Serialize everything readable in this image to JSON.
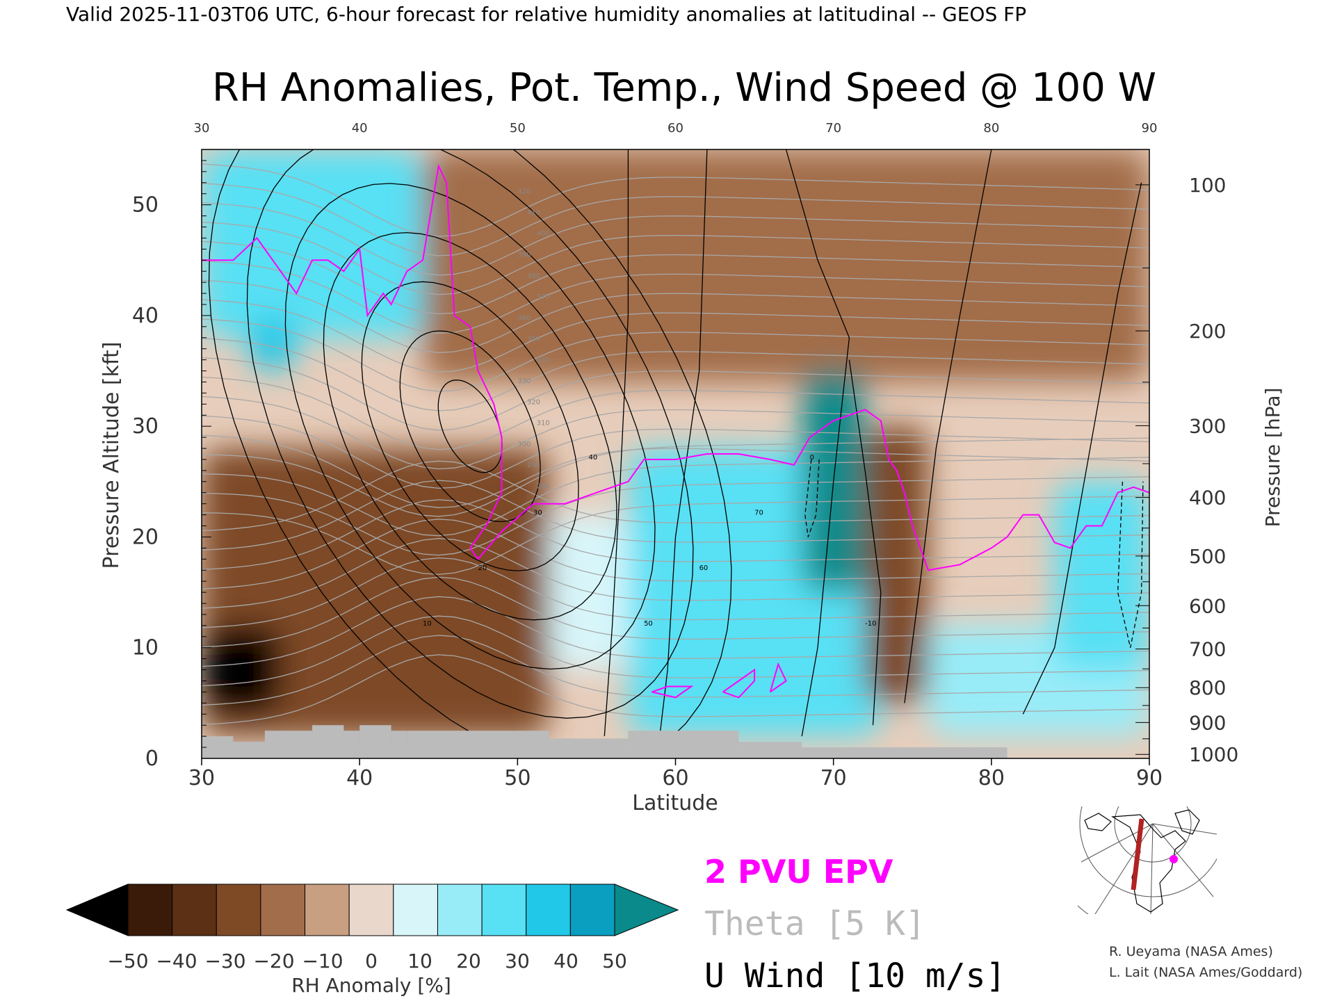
{
  "header": "Valid 2025-11-03T06 UTC, 6-hour forecast for relative humidity anomalies at latitudinal -- GEOS FP",
  "chart_data": {
    "type": "heatmap",
    "title": "RH Anomalies, Pot. Temp., Wind Speed @ 100 W",
    "xlabel": "Latitude",
    "ylabel_left": "Pressure Altitude [kft]",
    "ylabel_right": "Pressure [hPa]",
    "xlim": [
      30,
      90
    ],
    "ylim_kft": [
      0,
      55
    ],
    "x_ticks": [
      "30",
      "40",
      "50",
      "60",
      "70",
      "80",
      "90"
    ],
    "y_ticks_kft": [
      "0",
      "10",
      "20",
      "30",
      "40",
      "50"
    ],
    "pressure_ticks": [
      {
        "label": "100",
        "hpa": 100
      },
      {
        "label": "200",
        "hpa": 200
      },
      {
        "label": "300",
        "hpa": 300
      },
      {
        "label": "400",
        "hpa": 400
      },
      {
        "label": "500",
        "hpa": 500
      },
      {
        "label": "600",
        "hpa": 600
      },
      {
        "label": "700",
        "hpa": 700
      },
      {
        "label": "800",
        "hpa": 800
      },
      {
        "label": "900",
        "hpa": 900
      },
      {
        "label": "1000",
        "hpa": 1000
      }
    ],
    "rh_regions": [
      {
        "lat": [
          30,
          44
        ],
        "kft": [
          38,
          55
        ],
        "anomaly": 30
      },
      {
        "lat": [
          33,
          36
        ],
        "kft": [
          35,
          40
        ],
        "anomaly": 45
      },
      {
        "lat": [
          30,
          52
        ],
        "kft": [
          2,
          28
        ],
        "anomaly": -30
      },
      {
        "lat": [
          30,
          35
        ],
        "kft": [
          4,
          12
        ],
        "anomaly": -50
      },
      {
        "lat": [
          44,
          90
        ],
        "kft": [
          34,
          55
        ],
        "anomaly": -15
      },
      {
        "lat": [
          52,
          57
        ],
        "kft": [
          8,
          22
        ],
        "anomaly": 15
      },
      {
        "lat": [
          57,
          73
        ],
        "kft": [
          2,
          28
        ],
        "anomaly": 30
      },
      {
        "lat": [
          68,
          72
        ],
        "kft": [
          15,
          35
        ],
        "anomaly": 50
      },
      {
        "lat": [
          72,
          76
        ],
        "kft": [
          5,
          30
        ],
        "anomaly": -25
      },
      {
        "lat": [
          76,
          90
        ],
        "kft": [
          2,
          12
        ],
        "anomaly": 20
      },
      {
        "lat": [
          84,
          90
        ],
        "kft": [
          8,
          25
        ],
        "anomaly": 35
      }
    ],
    "theta_labels": [
      "420",
      "410",
      "400",
      "390",
      "380",
      "370",
      "360",
      "350",
      "340",
      "330",
      "320",
      "310",
      "300",
      "290",
      "280"
    ],
    "wind_labels": [
      "10",
      "20",
      "30",
      "40",
      "50",
      "60",
      "70",
      "0",
      "-10"
    ],
    "colorbar": {
      "label": "RH Anomaly [%]",
      "ticks": [
        "−50",
        "−40",
        "−30",
        "−20",
        "−10",
        "0",
        "10",
        "20",
        "30",
        "40",
        "50"
      ],
      "colors": [
        "#000000",
        "#3a1a08",
        "#5c3014",
        "#7e4a26",
        "#a26d4a",
        "#c99f82",
        "#ead7cb",
        "#d8f6fa",
        "#98ecf8",
        "#58e0f4",
        "#22c8e8",
        "#0a9ec0",
        "#0a8a8a"
      ]
    },
    "legend": {
      "epv": "2 PVU EPV",
      "theta": "Theta [5 K]",
      "wind": "U Wind [10 m/s]",
      "epv_color": "#ff00ff",
      "theta_color": "#bbbbbb"
    }
  },
  "credits": {
    "line1": "R. Ueyama (NASA Ames)",
    "line2": "L. Lait (NASA Ames/Goddard)"
  },
  "colors": {
    "terrain": "#bbbbbb",
    "epv": "#ff00ff",
    "section_line": "#b22222",
    "marker": "#ff00ff"
  }
}
